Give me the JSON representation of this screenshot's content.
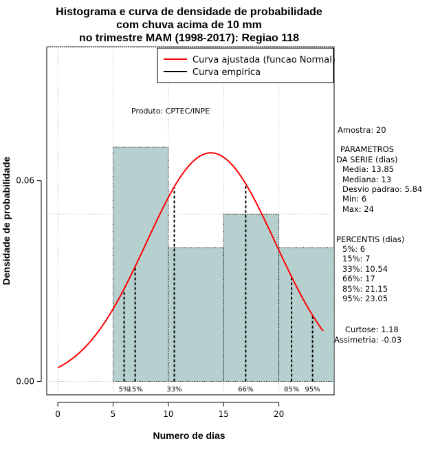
{
  "chart_data": {
    "type": "bar",
    "title": [
      "Histograma e curva de densidade de probabilidade",
      "com chuva acima de 10 mm",
      "no trimestre MAM (1998-2017): Regiao 118"
    ],
    "xlabel": "Numero de dias",
    "ylabel": "Densidade de probabilidade",
    "xlim": [
      -1,
      25
    ],
    "ylim": [
      -0.004,
      0.1
    ],
    "x_ticks": [
      0,
      5,
      10,
      15,
      20
    ],
    "y_ticks": [
      0.0,
      0.06
    ],
    "y_tick_labels": [
      "0.00",
      "0.06"
    ],
    "grid": true,
    "bins": [
      {
        "from": 5,
        "to": 10,
        "density": 0.07
      },
      {
        "from": 10,
        "to": 15,
        "density": 0.04
      },
      {
        "from": 15,
        "to": 20,
        "density": 0.05
      },
      {
        "from": 20,
        "to": 25,
        "density": 0.04
      }
    ],
    "bar_color": "#b6cfcf",
    "series": [
      {
        "name": "Curva ajustada (funcao Normal)",
        "color": "#ff0000",
        "type": "normal",
        "mean": 13.85,
        "sd": 5.84,
        "x_range": [
          0,
          24
        ]
      },
      {
        "name": "Curva empirica",
        "color": "#000000"
      }
    ],
    "legend_position": "top-right",
    "percentile_markers": [
      {
        "label": "5%",
        "x": 6
      },
      {
        "label": "15%",
        "x": 7
      },
      {
        "label": "33%",
        "x": 10.54
      },
      {
        "label": "66%",
        "x": 17
      },
      {
        "label": "85%",
        "x": 21.15
      },
      {
        "label": "95%",
        "x": 23.05
      }
    ],
    "annotation": "Produto: CPTEC/INPE"
  },
  "side_panel": {
    "amostra": "Amostra: 20",
    "parametros": [
      "PARAMETROS",
      "DA SERIE (dias)",
      "Media: 13.85",
      "Mediana: 13",
      "Desvio padrao: 5.84",
      "Min: 6",
      "Max: 24"
    ],
    "percentis": [
      "PERCENTIS (dias)",
      "5%: 6",
      "15%: 7",
      "33%: 10.54",
      "66%: 17",
      "85%: 21.15",
      "95%: 23.05"
    ],
    "forma": [
      "Curtose: 1.18",
      "Assimetria: -0.03"
    ]
  }
}
